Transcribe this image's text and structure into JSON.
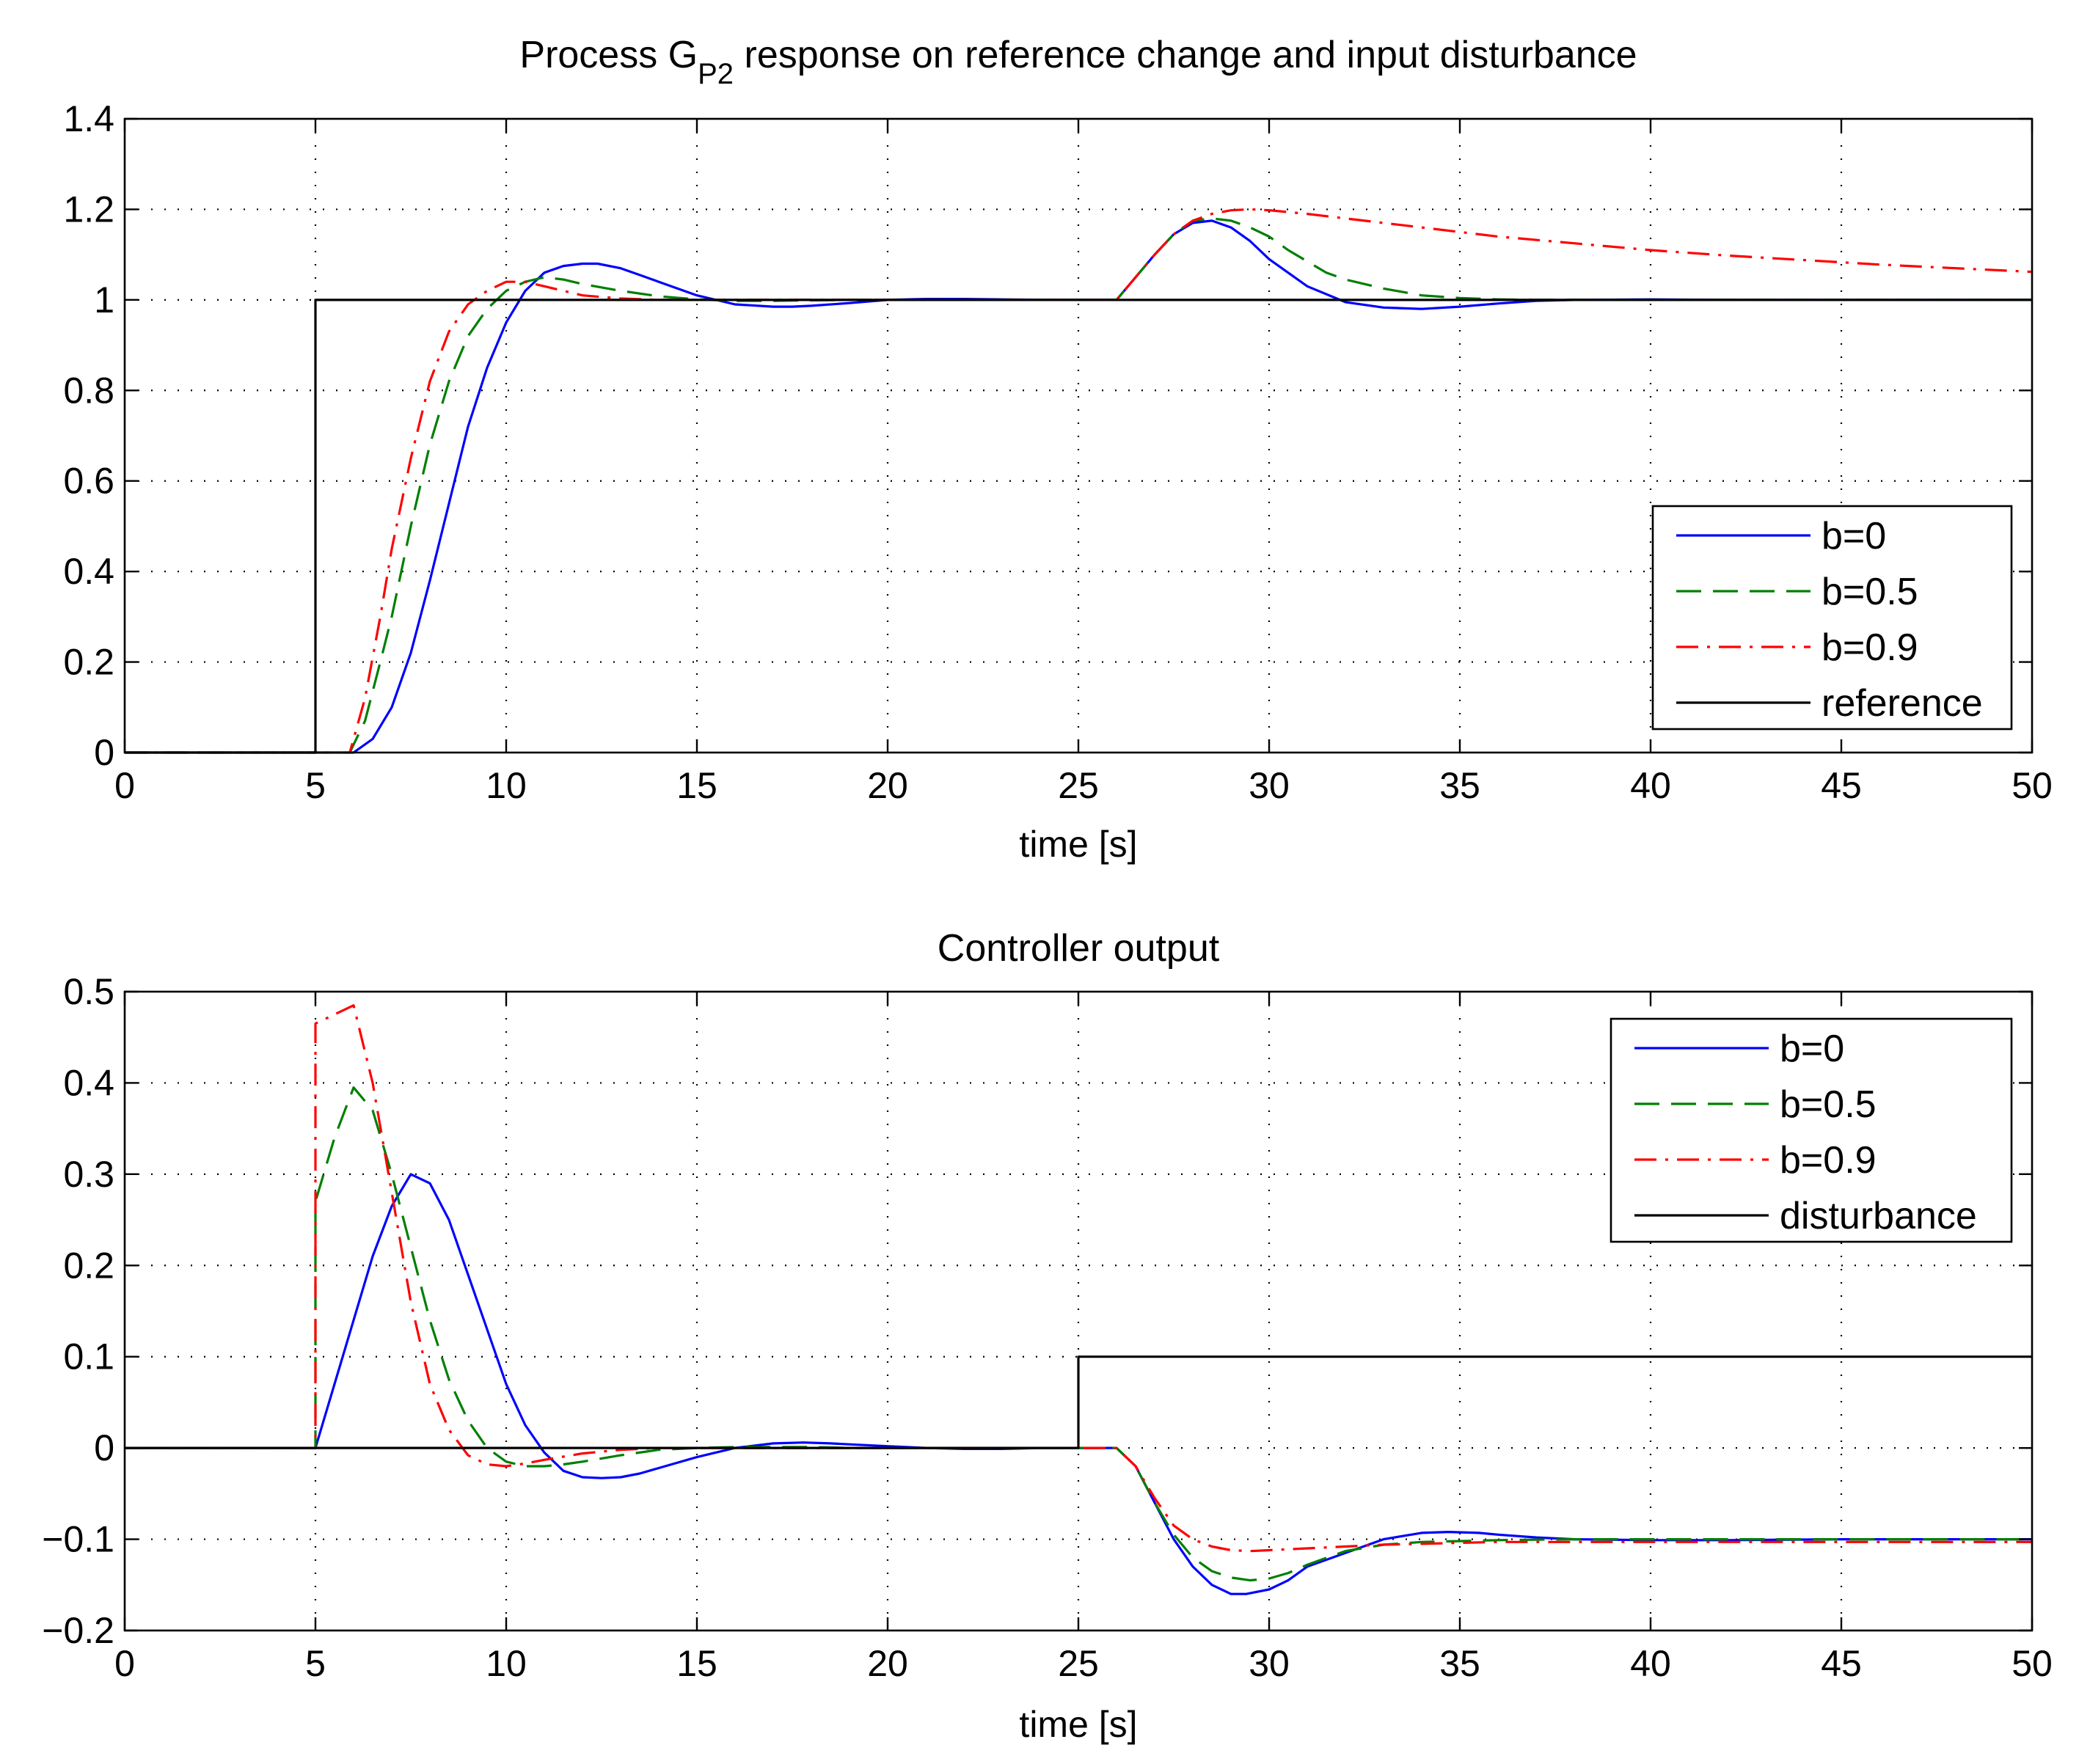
{
  "chart_data": [
    {
      "type": "line",
      "title_main": "Process G",
      "title_sub": "P2",
      "title_rest": " response on reference change and input disturbance",
      "xlabel": "time [s]",
      "ylabel": "",
      "xlim": [
        0,
        50
      ],
      "ylim": [
        0,
        1.4
      ],
      "xticks": [
        0,
        5,
        10,
        15,
        20,
        25,
        30,
        35,
        40,
        45,
        50
      ],
      "xtick_labels": [
        "0",
        "5",
        "10",
        "15",
        "20",
        "25",
        "30",
        "35",
        "40",
        "45",
        "50"
      ],
      "yticks": [
        0,
        0.2,
        0.4,
        0.6,
        0.8,
        1,
        1.2,
        1.4
      ],
      "ytick_labels": [
        "0",
        "0.2",
        "0.4",
        "0.6",
        "0.8",
        "1",
        "1.2",
        "1.4"
      ],
      "grid": true,
      "legend_position": "lower-right",
      "series": [
        {
          "name": "b=0",
          "color": "#0000ff",
          "style": "solid",
          "x": [
            0,
            5,
            6,
            6.5,
            7,
            7.5,
            8,
            8.5,
            9,
            9.5,
            10,
            10.5,
            11,
            11.5,
            12,
            12.4,
            13,
            13.5,
            14,
            15,
            16,
            17,
            17.5,
            18,
            19,
            20,
            21,
            22,
            23,
            24,
            25,
            26,
            26.5,
            27,
            27.5,
            28,
            28.5,
            29,
            29.5,
            30,
            31,
            32,
            33,
            34,
            35,
            36,
            37,
            38,
            40,
            42,
            45,
            50
          ],
          "y": [
            0,
            0,
            0,
            0.03,
            0.1,
            0.22,
            0.38,
            0.55,
            0.72,
            0.85,
            0.95,
            1.02,
            1.06,
            1.075,
            1.08,
            1.08,
            1.07,
            1.055,
            1.04,
            1.01,
            0.99,
            0.985,
            0.985,
            0.987,
            0.993,
            1.0,
            1.002,
            1.002,
            1.001,
            1.0,
            1.0,
            1.0,
            1.05,
            1.1,
            1.145,
            1.17,
            1.175,
            1.16,
            1.13,
            1.09,
            1.03,
            0.995,
            0.983,
            0.98,
            0.985,
            0.992,
            0.998,
            1.0,
            1.001,
            1.0,
            1.0,
            1.0
          ]
        },
        {
          "name": "b=0.5",
          "color": "#007f00",
          "style": "dashed",
          "x": [
            0,
            5,
            5.9,
            6.3,
            6.7,
            7,
            7.5,
            8,
            8.5,
            9,
            9.5,
            10,
            10.5,
            11,
            11.5,
            12,
            13,
            14,
            15,
            16,
            17,
            18,
            19,
            20,
            21,
            22,
            23,
            24,
            25,
            26,
            26.5,
            27,
            27.5,
            28,
            28.5,
            29,
            29.5,
            30,
            30.5,
            31,
            31.5,
            32,
            33,
            34,
            35,
            36,
            37,
            38,
            40,
            45,
            50
          ],
          "y": [
            0,
            0,
            0,
            0.07,
            0.2,
            0.3,
            0.5,
            0.68,
            0.82,
            0.92,
            0.98,
            1.02,
            1.04,
            1.05,
            1.045,
            1.035,
            1.02,
            1.008,
            1.001,
            0.998,
            0.998,
            0.999,
            1.0,
            1.0,
            1.0,
            1.0,
            1.0,
            1.0,
            1.0,
            1.0,
            1.05,
            1.1,
            1.145,
            1.175,
            1.18,
            1.175,
            1.16,
            1.14,
            1.11,
            1.085,
            1.06,
            1.045,
            1.025,
            1.01,
            1.004,
            1.001,
            1.0,
            1.0,
            1.0,
            1.0,
            1.0
          ]
        },
        {
          "name": "b=0.9",
          "color": "#ff0000",
          "style": "dashdot",
          "x": [
            0,
            5,
            5.9,
            6.3,
            6.7,
            7,
            7.5,
            8,
            8.5,
            9,
            9.5,
            10,
            10.5,
            11,
            11.5,
            12,
            13,
            14,
            15,
            16,
            17,
            18,
            19,
            20,
            21,
            22,
            23,
            24,
            25,
            26,
            26.5,
            27,
            27.5,
            28,
            28.5,
            29,
            29.5,
            30,
            31,
            32,
            34,
            36,
            38,
            40,
            42,
            44,
            46,
            48,
            50
          ],
          "y": [
            0,
            0,
            0,
            0.12,
            0.3,
            0.45,
            0.65,
            0.82,
            0.93,
            0.99,
            1.02,
            1.04,
            1.04,
            1.03,
            1.02,
            1.01,
            1.003,
            1.0,
            1.0,
            1.0,
            1.0,
            1.0,
            1.0,
            1.0,
            1.0,
            1.0,
            1.0,
            1.0,
            1.0,
            1.0,
            1.05,
            1.1,
            1.145,
            1.175,
            1.19,
            1.198,
            1.2,
            1.198,
            1.19,
            1.18,
            1.16,
            1.14,
            1.125,
            1.11,
            1.098,
            1.088,
            1.078,
            1.07,
            1.062
          ]
        },
        {
          "name": "reference",
          "color": "#000000",
          "style": "solid",
          "x": [
            0,
            5,
            5,
            50
          ],
          "y": [
            0,
            0,
            1,
            1
          ]
        }
      ]
    },
    {
      "type": "line",
      "title": "Controller output",
      "xlabel": "time [s]",
      "ylabel": "",
      "xlim": [
        0,
        50
      ],
      "ylim": [
        -0.2,
        0.5
      ],
      "xticks": [
        0,
        5,
        10,
        15,
        20,
        25,
        30,
        35,
        40,
        45,
        50
      ],
      "xtick_labels": [
        "0",
        "5",
        "10",
        "15",
        "20",
        "25",
        "30",
        "35",
        "40",
        "45",
        "50"
      ],
      "yticks": [
        -0.2,
        -0.1,
        0,
        0.1,
        0.2,
        0.3,
        0.4,
        0.5
      ],
      "ytick_labels": [
        "−0.2",
        "−0.1",
        "0",
        "0.1",
        "0.2",
        "0.3",
        "0.4",
        "0.5"
      ],
      "grid": true,
      "legend_position": "upper-right",
      "series": [
        {
          "name": "b=0",
          "color": "#0000ff",
          "style": "solid",
          "x": [
            0,
            5,
            5.5,
            6,
            6.5,
            7,
            7.5,
            8,
            8.5,
            9,
            9.5,
            10,
            10.5,
            11,
            11.5,
            12,
            12.5,
            13,
            13.5,
            14,
            15,
            16,
            17,
            17.8,
            18.5,
            19,
            20,
            21,
            22,
            23,
            24,
            25,
            26,
            26.5,
            27,
            27.5,
            28,
            28.5,
            29,
            29.4,
            30,
            30.5,
            31,
            32,
            33,
            34,
            34.7,
            35.5,
            36,
            37,
            38,
            40,
            42,
            45,
            50
          ],
          "y": [
            0,
            0,
            0.07,
            0.14,
            0.21,
            0.265,
            0.3,
            0.29,
            0.25,
            0.19,
            0.13,
            0.07,
            0.025,
            -0.005,
            -0.025,
            -0.032,
            -0.033,
            -0.032,
            -0.028,
            -0.022,
            -0.01,
            0.0,
            0.005,
            0.006,
            0.005,
            0.004,
            0.002,
            0.0,
            -0.001,
            -0.001,
            0.0,
            0.0,
            0.0,
            -0.02,
            -0.06,
            -0.1,
            -0.13,
            -0.15,
            -0.16,
            -0.16,
            -0.155,
            -0.145,
            -0.13,
            -0.115,
            -0.1,
            -0.093,
            -0.092,
            -0.093,
            -0.095,
            -0.098,
            -0.1,
            -0.101,
            -0.101,
            -0.1,
            -0.1
          ]
        },
        {
          "name": "b=0.5",
          "color": "#007f00",
          "style": "dashed",
          "x": [
            0,
            5,
            5,
            5.5,
            6,
            6.5,
            7,
            7.5,
            8,
            8.5,
            9,
            9.5,
            10,
            10.5,
            11,
            11.5,
            12,
            13,
            14,
            15,
            16,
            17,
            18,
            19,
            20,
            21,
            22,
            23,
            24,
            25,
            26,
            26.5,
            27,
            27.5,
            28,
            28.5,
            29,
            29.5,
            30,
            30.5,
            31,
            32,
            33,
            34,
            35,
            36,
            38,
            40,
            45,
            50
          ],
          "y": [
            0,
            0,
            0.27,
            0.34,
            0.395,
            0.37,
            0.3,
            0.22,
            0.14,
            0.075,
            0.03,
            0.0,
            -0.015,
            -0.02,
            -0.02,
            -0.018,
            -0.015,
            -0.008,
            -0.002,
            0.0,
            0.001,
            0.001,
            0.001,
            0.0,
            0.0,
            0.0,
            0.0,
            0.0,
            0.0,
            0.0,
            0.0,
            -0.02,
            -0.06,
            -0.095,
            -0.12,
            -0.135,
            -0.142,
            -0.145,
            -0.143,
            -0.137,
            -0.128,
            -0.113,
            -0.106,
            -0.103,
            -0.102,
            -0.101,
            -0.1,
            -0.1,
            -0.1,
            -0.1
          ]
        },
        {
          "name": "b=0.9",
          "color": "#ff0000",
          "style": "dashdot",
          "x": [
            0,
            5,
            5,
            5.5,
            6,
            6.5,
            7,
            7.5,
            8,
            8.5,
            9,
            9.5,
            10,
            10.5,
            11,
            12,
            13,
            14,
            15,
            16,
            17,
            18,
            19,
            20,
            21,
            22,
            23,
            24,
            25,
            26,
            26.5,
            27,
            27.5,
            28,
            28.5,
            29,
            29.5,
            30,
            31,
            32,
            33,
            34,
            35,
            36,
            38,
            40,
            45,
            50
          ],
          "y": [
            0,
            0,
            0.465,
            0.475,
            0.485,
            0.4,
            0.28,
            0.16,
            0.07,
            0.02,
            -0.008,
            -0.018,
            -0.02,
            -0.017,
            -0.013,
            -0.006,
            -0.002,
            0.0,
            0.0,
            0.0,
            0.0,
            0.0,
            0.0,
            0.0,
            0.0,
            0.0,
            0.0,
            0.0,
            0.0,
            0.0,
            -0.02,
            -0.055,
            -0.085,
            -0.1,
            -0.108,
            -0.112,
            -0.113,
            -0.112,
            -0.11,
            -0.108,
            -0.106,
            -0.105,
            -0.104,
            -0.103,
            -0.103,
            -0.103,
            -0.103,
            -0.103
          ]
        },
        {
          "name": "disturbance",
          "color": "#000000",
          "style": "solid",
          "x": [
            0,
            25,
            25,
            50
          ],
          "y": [
            0,
            0,
            0.1,
            0.1
          ]
        }
      ]
    }
  ]
}
